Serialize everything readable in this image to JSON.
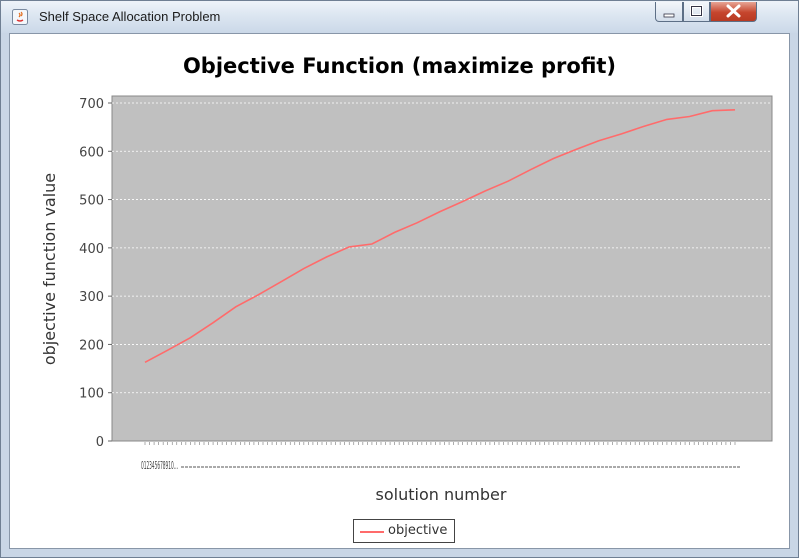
{
  "window": {
    "title": "Shelf Space Allocation Problem",
    "controls": [
      "minimize-icon",
      "maximize-icon",
      "close-icon"
    ]
  },
  "chart_data": {
    "type": "line",
    "title": "Objective Function (maximize profit)",
    "xlabel": "solution number",
    "ylabel": "objective function value",
    "ylim": [
      0,
      700
    ],
    "yticks": [
      0,
      100,
      200,
      300,
      400,
      500,
      600,
      700
    ],
    "xtick_labels_visible": "012345678910…",
    "plot_background": "#c0c0c0",
    "grid": true,
    "legend_position": "bottom-center",
    "series": [
      {
        "name": "objective",
        "color": "#ff6b6b",
        "x": [
          0,
          5,
          10,
          15,
          20,
          25,
          30,
          35,
          40,
          45,
          50,
          55,
          60,
          65,
          70,
          75,
          80,
          85,
          90,
          95,
          100,
          105,
          110,
          115,
          120,
          125,
          130
        ],
        "values": [
          163,
          188,
          214,
          245,
          278,
          303,
          330,
          357,
          381,
          402,
          408,
          432,
          452,
          475,
          496,
          518,
          538,
          562,
          585,
          604,
          622,
          636,
          652,
          666,
          672,
          684,
          686
        ]
      }
    ]
  }
}
